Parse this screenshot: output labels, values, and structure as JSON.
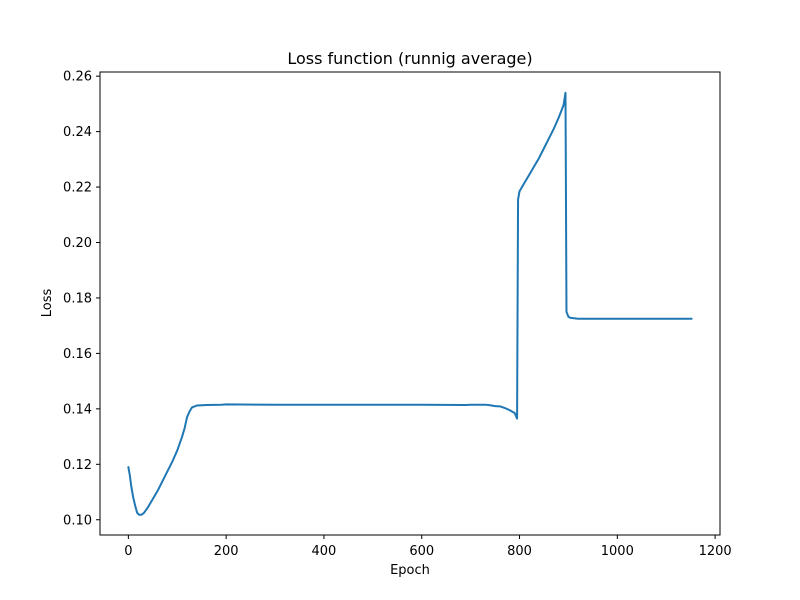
{
  "chart_data": {
    "type": "line",
    "title": "Loss function (runnig average)",
    "xlabel": "Epoch",
    "ylabel": "Loss",
    "xlim": [
      -58,
      1210
    ],
    "ylim": [
      0.0945,
      0.2615
    ],
    "xticks": [
      0,
      200,
      400,
      600,
      800,
      1000,
      1200
    ],
    "xtick_labels": [
      "0",
      "200",
      "400",
      "600",
      "800",
      "1000",
      "1200"
    ],
    "yticks": [
      0.1,
      0.12,
      0.14,
      0.16,
      0.18,
      0.2,
      0.22,
      0.24,
      0.26
    ],
    "ytick_labels": [
      "0.10",
      "0.12",
      "0.14",
      "0.16",
      "0.18",
      "0.20",
      "0.22",
      "0.24",
      "0.26"
    ],
    "grid": false,
    "legend": "none",
    "series": [
      {
        "color": "#1f77b4",
        "x": [
          0,
          3,
          6,
          10,
          14,
          18,
          22,
          27,
          32,
          40,
          50,
          60,
          70,
          80,
          90,
          100,
          110,
          115,
          120,
          125,
          130,
          140,
          160,
          190,
          200,
          300,
          400,
          500,
          600,
          690,
          700,
          730,
          740,
          750,
          760,
          770,
          780,
          790,
          795,
          797,
          800,
          810,
          820,
          830,
          840,
          850,
          860,
          870,
          880,
          890,
          894,
          896,
          900,
          905,
          920,
          1000,
          1100,
          1152
        ],
        "y": [
          0.119,
          0.116,
          0.112,
          0.108,
          0.105,
          0.1025,
          0.1018,
          0.1018,
          0.1025,
          0.1045,
          0.1075,
          0.1105,
          0.114,
          0.1175,
          0.121,
          0.125,
          0.13,
          0.133,
          0.137,
          0.139,
          0.1405,
          0.1412,
          0.1414,
          0.1415,
          0.1416,
          0.1415,
          0.1415,
          0.1415,
          0.1415,
          0.1414,
          0.1415,
          0.1415,
          0.1413,
          0.141,
          0.1409,
          0.1403,
          0.1395,
          0.1385,
          0.1365,
          0.2155,
          0.2185,
          0.2215,
          0.2245,
          0.2275,
          0.2305,
          0.234,
          0.2375,
          0.241,
          0.245,
          0.2495,
          0.254,
          0.175,
          0.1732,
          0.1728,
          0.1725,
          0.1725,
          0.1725,
          0.1725
        ]
      }
    ]
  }
}
